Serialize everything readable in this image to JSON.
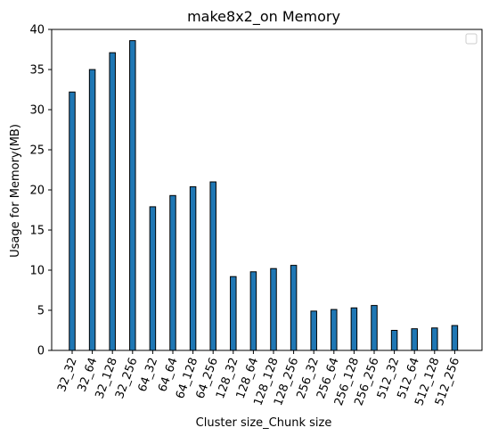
{
  "chart_data": {
    "type": "bar",
    "title": "make8x2_on Memory",
    "xlabel": "Cluster size_Chunk size",
    "ylabel": "Usage for Memory(MB)",
    "categories": [
      "32_32",
      "32_64",
      "32_128",
      "32_256",
      "64_32",
      "64_64",
      "64_128",
      "64_256",
      "128_32",
      "128_64",
      "128_128",
      "128_256",
      "256_32",
      "256_64",
      "256_128",
      "256_256",
      "512_32",
      "512_64",
      "512_128",
      "512_256"
    ],
    "values": [
      32.2,
      35.0,
      37.1,
      38.6,
      17.9,
      19.3,
      20.4,
      21.0,
      9.2,
      9.8,
      10.2,
      10.6,
      4.9,
      5.1,
      5.3,
      5.6,
      2.5,
      2.7,
      2.8,
      3.1
    ],
    "ylim": [
      0,
      40
    ],
    "yticks": [
      0,
      5,
      10,
      15,
      20,
      25,
      30,
      35,
      40
    ],
    "grid": false,
    "legend": "top-right, empty",
    "bar_color": "#1f77b4",
    "edge_color": "#000000"
  }
}
